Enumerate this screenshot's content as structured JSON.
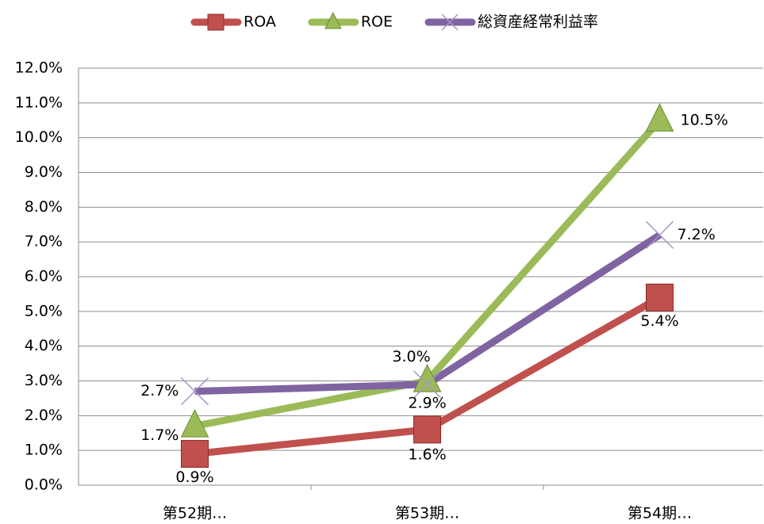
{
  "chart_data": {
    "type": "line",
    "categories": [
      "第52期…",
      "第53期…",
      "第54期…"
    ],
    "series": [
      {
        "name": "ROA",
        "color": "#c0504d",
        "values": [
          0.9,
          1.6,
          5.4
        ],
        "value_labels": [
          "0.9%",
          "1.6%",
          "5.4%"
        ]
      },
      {
        "name": "ROE",
        "color": "#9bbb59",
        "values": [
          1.7,
          3.0,
          10.5
        ],
        "value_labels": [
          "1.7%",
          "3.0%",
          "10.5%"
        ]
      },
      {
        "name": "総資産経常利益率",
        "color": "#8064a2",
        "values": [
          2.7,
          2.9,
          7.2
        ],
        "value_labels": [
          "2.7%",
          "2.9%",
          "7.2%"
        ]
      }
    ],
    "ylim": [
      0,
      12
    ],
    "yticks": [
      {
        "value": 0,
        "label": "0.0%"
      },
      {
        "value": 1,
        "label": "1.0%"
      },
      {
        "value": 2,
        "label": "2.0%"
      },
      {
        "value": 3,
        "label": "3.0%"
      },
      {
        "value": 4,
        "label": "4.0%"
      },
      {
        "value": 5,
        "label": "5.0%"
      },
      {
        "value": 6,
        "label": "6.0%"
      },
      {
        "value": 7,
        "label": "7.0%"
      },
      {
        "value": 8,
        "label": "8.0%"
      },
      {
        "value": 9,
        "label": "9.0%"
      },
      {
        "value": 10,
        "label": "10.0%"
      },
      {
        "value": 11,
        "label": "11.0%"
      },
      {
        "value": 12,
        "label": "12.0%"
      }
    ],
    "grid": true,
    "legend": "top"
  }
}
